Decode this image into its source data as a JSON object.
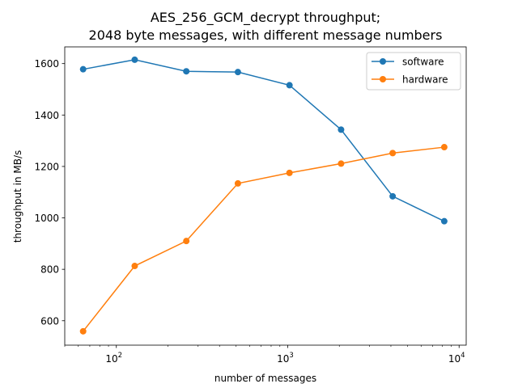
{
  "chart_data": {
    "type": "line",
    "title_lines": [
      "AES_256_GCM_decrypt throughput;",
      "2048 byte messages, with different message numbers"
    ],
    "xlabel": "number of messages",
    "ylabel": "throughput in MB/s",
    "xscale": "log",
    "xlim": [
      50,
      11000
    ],
    "ylim": [
      505,
      1665
    ],
    "x": [
      64,
      128,
      256,
      512,
      1024,
      2048,
      4096,
      8192
    ],
    "xticks": [
      {
        "value": 100,
        "base": "10",
        "exp": "2"
      },
      {
        "value": 1000,
        "base": "10",
        "exp": "3"
      },
      {
        "value": 10000,
        "base": "10",
        "exp": "4"
      }
    ],
    "yticks": [
      600,
      800,
      1000,
      1200,
      1400,
      1600
    ],
    "grid": false,
    "legend_position": "top-right",
    "series": [
      {
        "name": "software",
        "color": "#1f77b4",
        "values": [
          1578,
          1615,
          1570,
          1567,
          1516,
          1343,
          1084,
          987
        ]
      },
      {
        "name": "hardware",
        "color": "#ff7f0e",
        "values": [
          559,
          813,
          910,
          1134,
          1175,
          1211,
          1252,
          1275
        ]
      }
    ]
  }
}
